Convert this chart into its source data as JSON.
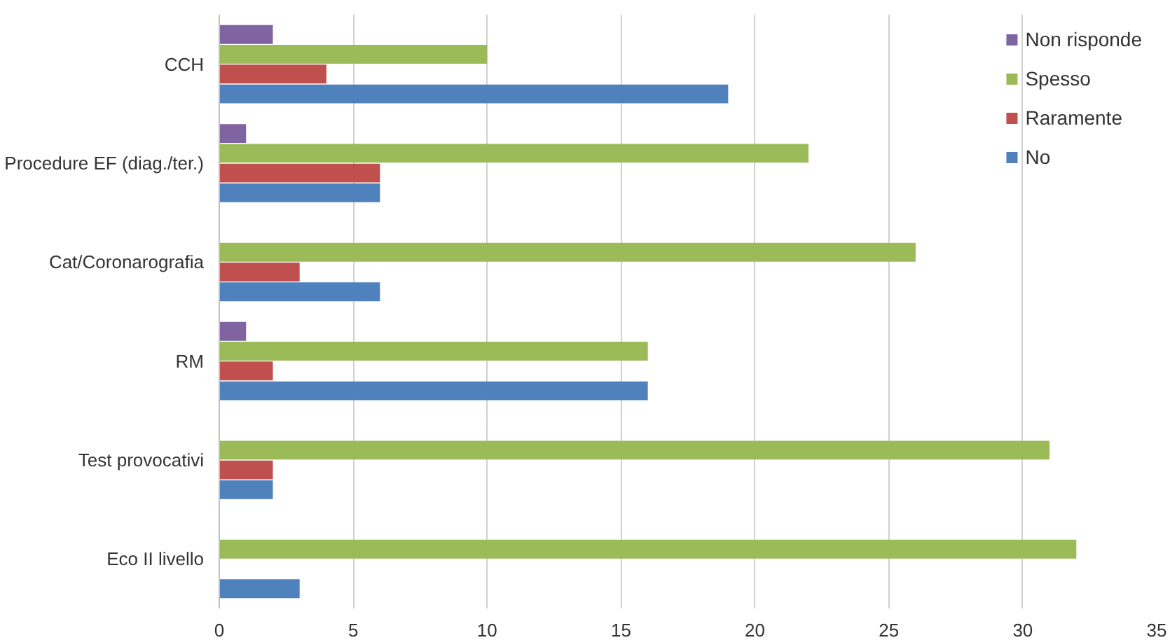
{
  "chart_data": {
    "type": "bar",
    "orientation": "horizontal",
    "categories": [
      "CCH",
      "Procedure EF (diag./ter.)",
      "Cat/Coronarografia",
      "RM",
      "Test provocativi",
      "Eco II livello"
    ],
    "series": [
      {
        "name": "No",
        "color": "#4f81bd",
        "values": [
          19,
          6,
          6,
          16,
          2,
          3
        ]
      },
      {
        "name": "Raramente",
        "color": "#c0504d",
        "values": [
          4,
          6,
          3,
          2,
          2,
          0
        ]
      },
      {
        "name": "Spesso",
        "color": "#9bbb59",
        "values": [
          10,
          22,
          26,
          16,
          31,
          32
        ]
      },
      {
        "name": "Non risponde",
        "color": "#8064a2",
        "values": [
          2,
          1,
          0,
          1,
          0,
          0
        ]
      }
    ],
    "xlim": [
      0,
      35
    ],
    "xticks": [
      0,
      5,
      10,
      15,
      20,
      25,
      30,
      35
    ],
    "grid": "x",
    "legend": "top right"
  }
}
